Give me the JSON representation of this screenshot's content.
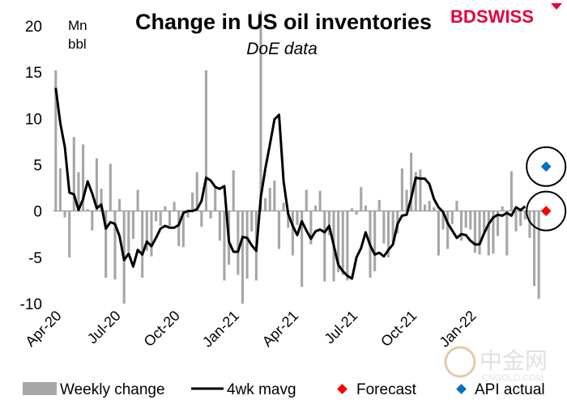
{
  "brand": {
    "name_a": "BD",
    "name_b": "SWISS",
    "color_a": "#e4003a",
    "color_b": "#e4003a"
  },
  "watermark": {
    "text": "中金网",
    "sub": "CNGOLD.COM"
  },
  "chart_data": {
    "type": "bar",
    "title": "Change in US oil inventories",
    "subtitle": "DoE data",
    "unit_top": "Mn",
    "unit_bottom": "bbl",
    "ylim": [
      -10,
      20
    ],
    "y_ticks": [
      20,
      15,
      10,
      5,
      0,
      -5,
      -10
    ],
    "x_labels": [
      "Apr-20",
      "Jul-20",
      "Oct-20",
      "Jan-21",
      "Apr-21",
      "Jul-21",
      "Oct-21",
      "Jan-22"
    ],
    "x_label_weeks": [
      0,
      13,
      26,
      39,
      52,
      65,
      78,
      91
    ],
    "series": [
      {
        "name": "Weekly change",
        "kind": "bar",
        "color": "#a6a6a6",
        "values": [
          15.2,
          4.6,
          -0.7,
          -5.0,
          8.0,
          4.2,
          7.2,
          0.2,
          -2.1,
          5.7,
          2.4,
          -7.2,
          5.1,
          -7.4,
          1.3,
          -10.0,
          -4.4,
          -3.0,
          2.3,
          -7.2,
          -4.3,
          -4.9,
          -1.1,
          -1.6,
          0.5,
          -1.6,
          1.0,
          -3.8,
          -3.9,
          -0.7,
          2.0,
          4.2,
          -1.7,
          15.2,
          -0.8,
          2.5,
          -3.2,
          -7.5,
          -5.8,
          4.4,
          -6.9,
          -10.0,
          -7.3,
          -2.2,
          -7.5,
          21.6,
          1.4,
          2.5,
          3.3,
          -4.1,
          0.9,
          -1.8,
          -4.8,
          -1.5,
          -8.2,
          2.3,
          -3.6,
          0.6,
          2.2,
          -7.6,
          -2.6,
          -7.6,
          -6.6,
          -6.9,
          -7.5,
          0.3,
          -0.4,
          2.6,
          0.6,
          -7.2,
          -6.5,
          1.2,
          -3.5,
          -5.0,
          -3.4,
          -2.4,
          4.6,
          2.3,
          6.3,
          4.2,
          4.5,
          0.7,
          1.1,
          0.4,
          -4.8,
          -2.0,
          -4.1,
          -1.4,
          1.1,
          -3.2,
          -1.8,
          -2.0,
          -4.5,
          -4.7,
          -2.3,
          -4.8,
          -4.6,
          -2.7,
          0.5,
          -4.8,
          4.3,
          -2.2,
          -1.6,
          -0.9,
          -2.9,
          -8.1,
          -9.5
        ]
      },
      {
        "name": "4wk mavg",
        "kind": "line",
        "color": "#000000",
        "values": [
          13.3,
          9.5,
          6.9,
          2.0,
          1.8,
          0.1,
          1.3,
          3.2,
          1.9,
          0.3,
          0.7,
          -1.9,
          -1.2,
          -1.4,
          -2.7,
          -5.3,
          -4.6,
          -6.0,
          -4.2,
          -4.7,
          -3.3,
          -3.8,
          -2.9,
          -1.9,
          -1.6,
          -1.8,
          -1.8,
          -1.5,
          -0.2,
          0.0,
          0.0,
          0.2,
          1.1,
          3.6,
          3.3,
          2.6,
          2.4,
          2.7,
          -3.3,
          -4.4,
          -4.4,
          -2.8,
          -2.9,
          -3.7,
          -4.3,
          1.5,
          4.6,
          7.2,
          9.9,
          10.4,
          3.2,
          -0.3,
          -1.6,
          -2.6,
          -1.1,
          -2.1,
          -3.0,
          -2.2,
          -2.0,
          -2.3,
          -1.6,
          -3.7,
          -5.8,
          -6.5,
          -7.0,
          -7.3,
          -5.0,
          -4.0,
          -2.3,
          -3.7,
          -4.7,
          -4.5,
          -4.9,
          -4.2,
          -3.6,
          -1.4,
          -0.5,
          -0.4,
          1.4,
          3.6,
          3.5,
          3.5,
          2.9,
          1.3,
          0.4,
          -0.1,
          -1.3,
          -2.1,
          -2.9,
          -2.5,
          -2.6,
          -3.2,
          -3.6,
          -3.6,
          -2.4,
          -1.4,
          -0.7,
          -0.4,
          -0.5,
          -0.2,
          -0.5,
          0.4,
          0.1,
          0.5
        ]
      },
      {
        "name": "Forecast",
        "kind": "point",
        "color": "#ff0000",
        "value": 0.0
      },
      {
        "name": "API actual",
        "kind": "point",
        "color": "#0070c0",
        "value": 4.8
      }
    ],
    "annotations": [
      "circle around API actual",
      "circle around Forecast"
    ],
    "legend": [
      "Weekly change",
      "4wk mavg",
      "Forecast",
      "API actual"
    ],
    "legend_position": "bottom"
  }
}
